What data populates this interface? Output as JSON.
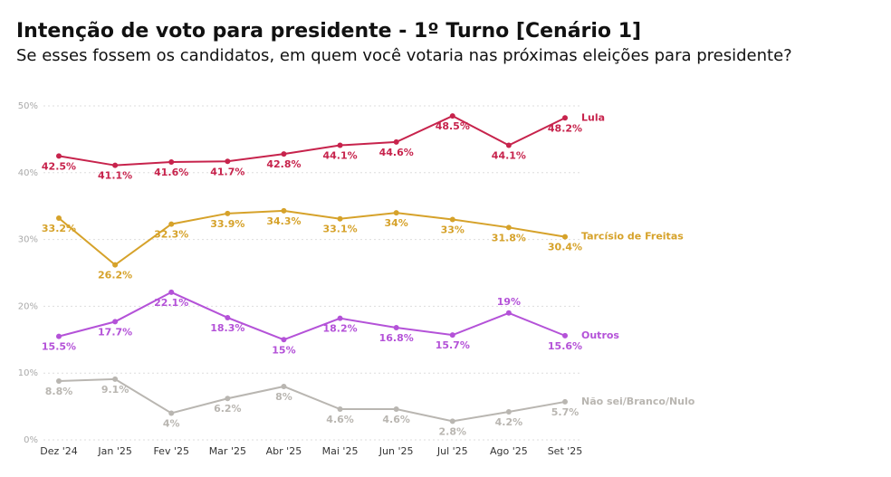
{
  "chart_data": {
    "type": "line",
    "title": "Intenção de voto para presidente - 1º Turno [Cenário 1]",
    "subtitle": "Se esses fossem os candidatos, em quem você votaria nas próximas eleições para presidente?",
    "categories": [
      "Dez '24",
      "Jan '25",
      "Fev '25",
      "Mar '25",
      "Abr '25",
      "Mai '25",
      "Jun '25",
      "Jul '25",
      "Ago '25",
      "Set '25"
    ],
    "ylim": [
      0,
      50
    ],
    "yticks": [
      {
        "value": 0,
        "label": "0%"
      },
      {
        "value": 10,
        "label": "10%"
      },
      {
        "value": 20,
        "label": "20%"
      },
      {
        "value": 30,
        "label": "30%"
      },
      {
        "value": 40,
        "label": "40%"
      },
      {
        "value": 50,
        "label": "50%"
      }
    ],
    "grid": true,
    "series": [
      {
        "name": "Lula",
        "color": "#c7234c",
        "values": [
          42.5,
          41.1,
          41.6,
          41.7,
          42.8,
          44.1,
          44.6,
          48.5,
          44.1,
          48.2
        ],
        "value_labels": [
          "42.5%",
          "41.1%",
          "41.6%",
          "41.7%",
          "42.8%",
          "44.1%",
          "44.6%",
          "48.5%",
          "44.1%",
          "48.2%"
        ]
      },
      {
        "name": "Tarcísio de Freitas",
        "color": "#d6a22a",
        "values": [
          33.2,
          26.2,
          32.3,
          33.9,
          34.3,
          33.1,
          34,
          33,
          31.8,
          30.4
        ],
        "value_labels": [
          "33.2%",
          "26.2%",
          "32.3%",
          "33.9%",
          "34.3%",
          "33.1%",
          "34%",
          "33%",
          "31.8%",
          "30.4%"
        ]
      },
      {
        "name": "Outros",
        "color": "#b452d8",
        "values": [
          15.5,
          17.7,
          22.1,
          18.3,
          15,
          18.2,
          16.8,
          15.7,
          19,
          15.6
        ],
        "value_labels": [
          "15.5%",
          "17.7%",
          "22.1%",
          "18.3%",
          "15%",
          "18.2%",
          "16.8%",
          "15.7%",
          "19%",
          "15.6%"
        ]
      },
      {
        "name": "Não sei/Branco/Nulo",
        "color": "#b9b6b1",
        "values": [
          8.8,
          9.1,
          4,
          6.2,
          8,
          4.6,
          4.6,
          2.8,
          4.2,
          5.7
        ],
        "value_labels": [
          "8.8%",
          "9.1%",
          "4%",
          "6.2%",
          "8%",
          "4.6%",
          "4.6%",
          "2.8%",
          "4.2%",
          "5.7%"
        ]
      }
    ]
  }
}
